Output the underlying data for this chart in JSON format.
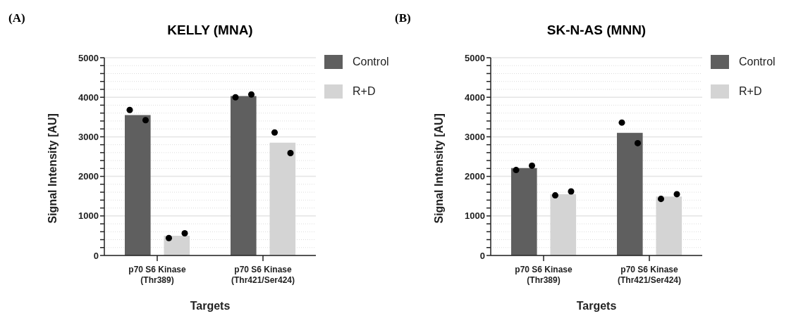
{
  "chart_data": [
    {
      "type": "bar",
      "title": "KELLY (MNA)",
      "xlabel": "Targets",
      "ylabel": "Signal Intensity [AU]",
      "annotations": [
        "(A)"
      ],
      "categories": [
        "p70 S6 Kinase\n(Thr389)",
        "p70 S6 Kinase\n(Thr421/Ser424)"
      ],
      "series": [
        {
          "name": "Control",
          "color": "#5f5f5f",
          "values": [
            3550,
            4030
          ]
        },
        {
          "name": "R+D",
          "color": "#d4d4d4",
          "values": [
            500,
            2850
          ]
        },
        {
          "type": "scatter",
          "color": "#000000",
          "x": [
            "p70 S6 Kinase\n(Thr389)",
            "p70 S6 Kinase\n(Thr389)",
            "p70 S6 Kinase\n(Thr421/Ser424)",
            "p70 S6 Kinase\n(Thr421/Ser424)"
          ],
          "values": [
            3680,
            3420,
            4000,
            4070
          ]
        },
        {
          "type": "scatter",
          "color": "#000000",
          "x": [
            "p70 S6 Kinase\n(Thr389)",
            "p70 S6 Kinase\n(Thr389)",
            "p70 S6 Kinase\n(Thr421/Ser424)",
            "p70 S6 Kinase\n(Thr421/Ser424)"
          ],
          "values": [
            440,
            560,
            3110,
            2590
          ]
        }
      ],
      "ylim": [
        0,
        5000
      ],
      "yticks": [
        0,
        {
          "value": 200,
          "label": null
        },
        {
          "value": 400,
          "label": null
        },
        {
          "value": 600,
          "label": null
        },
        {
          "value": 800,
          "label": null
        },
        1000,
        {
          "value": 1200,
          "label": null
        },
        {
          "value": 1400,
          "label": null
        },
        {
          "value": 1600,
          "label": null
        },
        {
          "value": 1800,
          "label": null
        },
        2000,
        {
          "value": 2200,
          "label": null
        },
        {
          "value": 2400,
          "label": null
        },
        {
          "value": 2600,
          "label": null
        },
        {
          "value": 2800,
          "label": null
        },
        3000,
        {
          "value": 3200,
          "label": null
        },
        {
          "value": 3400,
          "label": null
        },
        {
          "value": 3600,
          "label": null
        },
        {
          "value": 3800,
          "label": null
        },
        4000,
        {
          "value": 4200,
          "label": null
        },
        {
          "value": 4400,
          "label": null
        },
        {
          "value": 4600,
          "label": null
        },
        {
          "value": 4800,
          "label": null
        },
        5000
      ],
      "grid": "y",
      "legend": "top right",
      "marker": "circle"
    },
    {
      "type": "bar",
      "title": "SK-N-AS (MNN)",
      "xlabel": "Targets",
      "ylabel": "Signal Intensity [AU]",
      "annotations": [
        "(B)"
      ],
      "categories": [
        "p70 S6 Kinase\n(Thr389)",
        "p70 S6 Kinase\n(Thr421/Ser424)"
      ],
      "series": [
        {
          "name": "Control",
          "color": "#5f5f5f",
          "values": [
            2210,
            3100
          ]
        },
        {
          "name": "R+D",
          "color": "#d4d4d4",
          "values": [
            1550,
            1490
          ]
        },
        {
          "type": "scatter",
          "color": "#000000",
          "x": [
            "p70 S6 Kinase\n(Thr389)",
            "p70 S6 Kinase\n(Thr389)",
            "p70 S6 Kinase\n(Thr421/Ser424)",
            "p70 S6 Kinase\n(Thr421/Ser424)"
          ],
          "values": [
            2160,
            2270,
            3360,
            2840
          ]
        },
        {
          "type": "scatter",
          "color": "#000000",
          "x": [
            "p70 S6 Kinase\n(Thr389)",
            "p70 S6 Kinase\n(Thr389)",
            "p70 S6 Kinase\n(Thr421/Ser424)",
            "p70 S6 Kinase\n(Thr421/Ser424)"
          ],
          "values": [
            1520,
            1620,
            1430,
            1550
          ]
        }
      ],
      "ylim": [
        0,
        5000
      ],
      "yticks": [
        0,
        {
          "value": 200,
          "label": null
        },
        {
          "value": 400,
          "label": null
        },
        {
          "value": 600,
          "label": null
        },
        {
          "value": 800,
          "label": null
        },
        1000,
        {
          "value": 1200,
          "label": null
        },
        {
          "value": 1400,
          "label": null
        },
        {
          "value": 1600,
          "label": null
        },
        {
          "value": 1800,
          "label": null
        },
        2000,
        {
          "value": 2200,
          "label": null
        },
        {
          "value": 2400,
          "label": null
        },
        {
          "value": 2600,
          "label": null
        },
        {
          "value": 2800,
          "label": null
        },
        3000,
        {
          "value": 3200,
          "label": null
        },
        {
          "value": 3400,
          "label": null
        },
        {
          "value": 3600,
          "label": null
        },
        {
          "value": 3800,
          "label": null
        },
        4000,
        {
          "value": 4200,
          "label": null
        },
        {
          "value": 4400,
          "label": null
        },
        {
          "value": 4600,
          "label": null
        },
        {
          "value": 4800,
          "label": null
        },
        5000
      ],
      "grid": "y",
      "legend": "top right",
      "marker": "circle"
    }
  ]
}
